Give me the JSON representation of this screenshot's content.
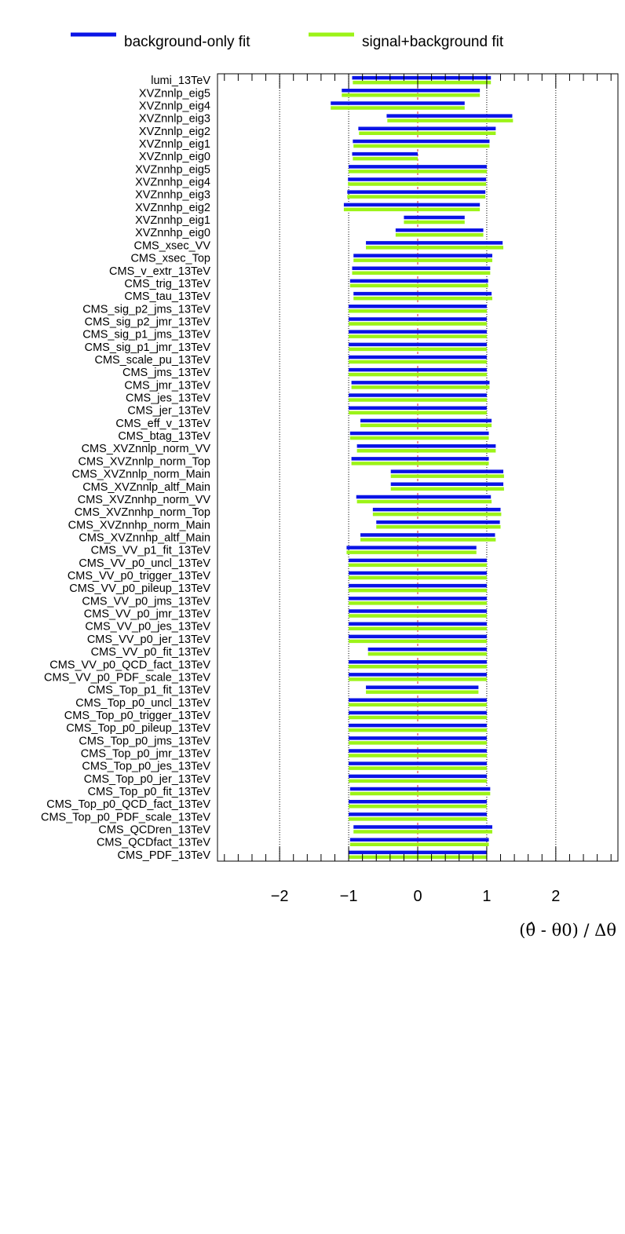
{
  "chart_data": {
    "type": "pull-plot",
    "xlabel": "(θ̂ - θ0) / Δθ",
    "xlim": [
      -2.9,
      2.9
    ],
    "xticks": [
      -2,
      -1,
      0,
      1,
      2
    ],
    "xtick_labels": [
      "−2",
      "−1",
      "0",
      "1",
      "2"
    ],
    "gridlines": [
      -2,
      -1,
      0,
      1,
      2
    ],
    "colors": {
      "background_only": "#0a14e6",
      "signal_plus_background": "#9cf318",
      "zero_line": "#d62728"
    },
    "legend": [
      {
        "name": "background-only fit",
        "color": "#0a14e6"
      },
      {
        "name": "signal+background fit",
        "color": "#9cf318"
      }
    ],
    "parameters": [
      {
        "name": "lumi_13TeV",
        "b": [
          -0.95,
          1.06
        ],
        "sb": [
          -0.94,
          1.06
        ]
      },
      {
        "name": "XVZnnlp_eig5",
        "b": [
          -1.1,
          0.9
        ],
        "sb": [
          -1.1,
          0.9
        ]
      },
      {
        "name": "XVZnnlp_eig4",
        "b": [
          -1.26,
          0.68
        ],
        "sb": [
          -1.26,
          0.68
        ]
      },
      {
        "name": "XVZnnlp_eig3",
        "b": [
          -0.45,
          1.37
        ],
        "sb": [
          -0.44,
          1.38
        ]
      },
      {
        "name": "XVZnnlp_eig2",
        "b": [
          -0.86,
          1.13
        ],
        "sb": [
          -0.85,
          1.13
        ]
      },
      {
        "name": "XVZnnlp_eig1",
        "b": [
          -0.94,
          1.04
        ],
        "sb": [
          -0.93,
          1.04
        ]
      },
      {
        "name": "XVZnnlp_eig0",
        "b": [
          -0.95,
          0.0
        ],
        "sb": [
          -0.94,
          0.0
        ]
      },
      {
        "name": "XVZnnhp_eig5",
        "b": [
          -1.0,
          1.0
        ],
        "sb": [
          -1.0,
          1.0
        ]
      },
      {
        "name": "XVZnnhp_eig4",
        "b": [
          -1.01,
          0.99
        ],
        "sb": [
          -1.01,
          0.99
        ]
      },
      {
        "name": "XVZnnhp_eig3",
        "b": [
          -1.02,
          0.98
        ],
        "sb": [
          -1.02,
          0.98
        ]
      },
      {
        "name": "XVZnnhp_eig2",
        "b": [
          -1.07,
          0.9
        ],
        "sb": [
          -1.07,
          0.9
        ]
      },
      {
        "name": "XVZnnhp_eig1",
        "b": [
          -0.2,
          0.68
        ],
        "sb": [
          -0.2,
          0.68
        ]
      },
      {
        "name": "XVZnnhp_eig0",
        "b": [
          -0.32,
          0.95
        ],
        "sb": [
          -0.32,
          0.95
        ]
      },
      {
        "name": "CMS_xsec_VV",
        "b": [
          -0.75,
          1.23
        ],
        "sb": [
          -0.75,
          1.24
        ]
      },
      {
        "name": "CMS_xsec_Top",
        "b": [
          -0.93,
          1.08
        ],
        "sb": [
          -0.93,
          1.08
        ]
      },
      {
        "name": "CMS_v_extr_13TeV",
        "b": [
          -0.95,
          1.05
        ],
        "sb": [
          -0.95,
          1.05
        ]
      },
      {
        "name": "CMS_trig_13TeV",
        "b": [
          -0.98,
          1.02
        ],
        "sb": [
          -0.98,
          1.02
        ]
      },
      {
        "name": "CMS_tau_13TeV",
        "b": [
          -0.93,
          1.07
        ],
        "sb": [
          -0.93,
          1.08
        ]
      },
      {
        "name": "CMS_sig_p2_jms_13TeV",
        "b": [
          -1.0,
          1.0
        ],
        "sb": [
          -1.0,
          1.0
        ]
      },
      {
        "name": "CMS_sig_p2_jmr_13TeV",
        "b": [
          -1.0,
          1.0
        ],
        "sb": [
          -1.0,
          1.0
        ]
      },
      {
        "name": "CMS_sig_p1_jms_13TeV",
        "b": [
          -1.0,
          1.0
        ],
        "sb": [
          -1.0,
          1.0
        ]
      },
      {
        "name": "CMS_sig_p1_jmr_13TeV",
        "b": [
          -1.0,
          1.0
        ],
        "sb": [
          -1.0,
          1.0
        ]
      },
      {
        "name": "CMS_scale_pu_13TeV",
        "b": [
          -1.0,
          1.0
        ],
        "sb": [
          -1.0,
          1.0
        ]
      },
      {
        "name": "CMS_jms_13TeV",
        "b": [
          -1.0,
          1.0
        ],
        "sb": [
          -1.0,
          1.0
        ]
      },
      {
        "name": "CMS_jmr_13TeV",
        "b": [
          -0.96,
          1.04
        ],
        "sb": [
          -0.96,
          1.04
        ]
      },
      {
        "name": "CMS_jes_13TeV",
        "b": [
          -1.0,
          1.0
        ],
        "sb": [
          -1.0,
          1.0
        ]
      },
      {
        "name": "CMS_jer_13TeV",
        "b": [
          -1.0,
          1.0
        ],
        "sb": [
          -1.0,
          1.0
        ]
      },
      {
        "name": "CMS_eff_v_13TeV",
        "b": [
          -0.83,
          1.07
        ],
        "sb": [
          -0.83,
          1.07
        ]
      },
      {
        "name": "CMS_btag_13TeV",
        "b": [
          -0.98,
          1.03
        ],
        "sb": [
          -0.98,
          1.03
        ]
      },
      {
        "name": "CMS_XVZnnlp_norm_VV",
        "b": [
          -0.88,
          1.13
        ],
        "sb": [
          -0.88,
          1.13
        ]
      },
      {
        "name": "CMS_XVZnnlp_norm_Top",
        "b": [
          -0.96,
          1.03
        ],
        "sb": [
          -0.96,
          1.03
        ]
      },
      {
        "name": "CMS_XVZnnlp_norm_Main",
        "b": [
          -0.39,
          1.24
        ],
        "sb": [
          -0.39,
          1.25
        ]
      },
      {
        "name": "CMS_XVZnnlp_altf_Main",
        "b": [
          -0.39,
          1.24
        ],
        "sb": [
          -0.39,
          1.25
        ]
      },
      {
        "name": "CMS_XVZnnhp_norm_VV",
        "b": [
          -0.89,
          1.06
        ],
        "sb": [
          -0.88,
          1.07
        ]
      },
      {
        "name": "CMS_XVZnnhp_norm_Top",
        "b": [
          -0.65,
          1.2
        ],
        "sb": [
          -0.65,
          1.21
        ]
      },
      {
        "name": "CMS_XVZnnhp_norm_Main",
        "b": [
          -0.6,
          1.19
        ],
        "sb": [
          -0.6,
          1.2
        ]
      },
      {
        "name": "CMS_XVZnnhp_altf_Main",
        "b": [
          -0.83,
          1.12
        ],
        "sb": [
          -0.83,
          1.13
        ]
      },
      {
        "name": "CMS_VV_p1_fit_13TeV",
        "b": [
          -1.03,
          0.85
        ],
        "sb": [
          -1.03,
          0.85
        ]
      },
      {
        "name": "CMS_VV_p0_uncl_13TeV",
        "b": [
          -1.0,
          1.0
        ],
        "sb": [
          -1.0,
          1.0
        ]
      },
      {
        "name": "CMS_VV_p0_trigger_13TeV",
        "b": [
          -1.0,
          1.0
        ],
        "sb": [
          -1.0,
          1.0
        ]
      },
      {
        "name": "CMS_VV_p0_pileup_13TeV",
        "b": [
          -1.0,
          1.0
        ],
        "sb": [
          -1.0,
          1.0
        ]
      },
      {
        "name": "CMS_VV_p0_jms_13TeV",
        "b": [
          -1.0,
          1.0
        ],
        "sb": [
          -1.0,
          1.0
        ]
      },
      {
        "name": "CMS_VV_p0_jmr_13TeV",
        "b": [
          -1.0,
          1.0
        ],
        "sb": [
          -1.0,
          1.0
        ]
      },
      {
        "name": "CMS_VV_p0_jes_13TeV",
        "b": [
          -1.0,
          1.0
        ],
        "sb": [
          -1.0,
          1.0
        ]
      },
      {
        "name": "CMS_VV_p0_jer_13TeV",
        "b": [
          -1.0,
          1.0
        ],
        "sb": [
          -1.0,
          1.0
        ]
      },
      {
        "name": "CMS_VV_p0_fit_13TeV",
        "b": [
          -0.72,
          1.0
        ],
        "sb": [
          -0.72,
          1.0
        ]
      },
      {
        "name": "CMS_VV_p0_QCD_fact_13TeV",
        "b": [
          -1.0,
          1.0
        ],
        "sb": [
          -1.0,
          1.0
        ]
      },
      {
        "name": "CMS_VV_p0_PDF_scale_13TeV",
        "b": [
          -1.0,
          1.0
        ],
        "sb": [
          -1.0,
          1.0
        ]
      },
      {
        "name": "CMS_Top_p1_fit_13TeV",
        "b": [
          -0.75,
          0.88
        ],
        "sb": [
          -0.75,
          0.88
        ]
      },
      {
        "name": "CMS_Top_p0_uncl_13TeV",
        "b": [
          -1.0,
          1.0
        ],
        "sb": [
          -1.0,
          1.0
        ]
      },
      {
        "name": "CMS_Top_p0_trigger_13TeV",
        "b": [
          -1.0,
          1.0
        ],
        "sb": [
          -1.0,
          1.0
        ]
      },
      {
        "name": "CMS_Top_p0_pileup_13TeV",
        "b": [
          -1.0,
          1.0
        ],
        "sb": [
          -1.0,
          1.0
        ]
      },
      {
        "name": "CMS_Top_p0_jms_13TeV",
        "b": [
          -1.0,
          1.0
        ],
        "sb": [
          -1.0,
          1.0
        ]
      },
      {
        "name": "CMS_Top_p0_jmr_13TeV",
        "b": [
          -1.0,
          1.0
        ],
        "sb": [
          -1.0,
          1.0
        ]
      },
      {
        "name": "CMS_Top_p0_jes_13TeV",
        "b": [
          -1.0,
          1.0
        ],
        "sb": [
          -1.0,
          1.0
        ]
      },
      {
        "name": "CMS_Top_p0_jer_13TeV",
        "b": [
          -1.0,
          1.0
        ],
        "sb": [
          -1.0,
          1.0
        ]
      },
      {
        "name": "CMS_Top_p0_fit_13TeV",
        "b": [
          -0.98,
          1.05
        ],
        "sb": [
          -0.98,
          1.05
        ]
      },
      {
        "name": "CMS_Top_p0_QCD_fact_13TeV",
        "b": [
          -1.0,
          1.0
        ],
        "sb": [
          -1.0,
          1.0
        ]
      },
      {
        "name": "CMS_Top_p0_PDF_scale_13TeV",
        "b": [
          -1.0,
          1.0
        ],
        "sb": [
          -1.0,
          1.0
        ]
      },
      {
        "name": "CMS_QCDren_13TeV",
        "b": [
          -0.93,
          1.08
        ],
        "sb": [
          -0.93,
          1.08
        ]
      },
      {
        "name": "CMS_QCDfact_13TeV",
        "b": [
          -0.98,
          1.03
        ],
        "sb": [
          -0.98,
          1.03
        ]
      },
      {
        "name": "CMS_PDF_13TeV",
        "b": [
          -1.0,
          1.0
        ],
        "sb": [
          -1.0,
          1.0
        ]
      }
    ]
  }
}
